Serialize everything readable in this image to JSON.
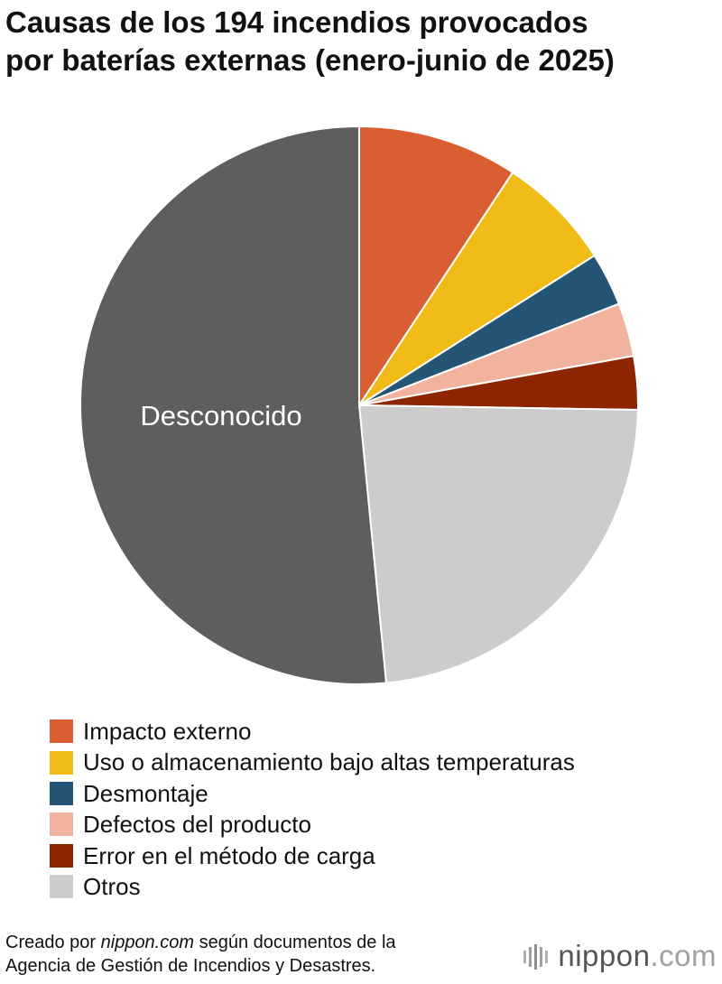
{
  "title": {
    "line1": "Causas de los 194 incendios provocados",
    "line2": "por baterías externas (enero-junio de 2025)"
  },
  "chart_data": {
    "type": "pie",
    "title": "Causas de los 194 incendios provocados por baterías externas (enero-junio de 2025)",
    "total": 194,
    "slices": [
      {
        "label": "Impacto externo",
        "value": 18,
        "color": "#d95f32"
      },
      {
        "label": "Uso o almacenamiento bajo altas temperaturas",
        "value": 13,
        "color": "#f0bb17"
      },
      {
        "label": "Desmontaje",
        "value": 6,
        "color": "#245575"
      },
      {
        "label": "Defectos del producto",
        "value": 6,
        "color": "#f2b39e"
      },
      {
        "label": "Error en el método de carga",
        "value": 6,
        "color": "#8c2500"
      },
      {
        "label": "Otros",
        "value": 45,
        "color": "#cccccc"
      },
      {
        "label": "Desconocido",
        "value": 100,
        "color": "#5e5e5e"
      }
    ],
    "inner_label": "Desconocido",
    "legend_position": "bottom-left"
  },
  "legend": [
    {
      "label": "Impacto externo",
      "color": "#d95f32"
    },
    {
      "label": "Uso o almacenamiento bajo altas temperaturas",
      "color": "#f0bb17"
    },
    {
      "label": "Desmontaje",
      "color": "#245575"
    },
    {
      "label": "Defectos del producto",
      "color": "#f2b39e"
    },
    {
      "label": "Error en el método de carga",
      "color": "#8c2500"
    },
    {
      "label": "Otros",
      "color": "#cccccc"
    }
  ],
  "footer": {
    "prefix": "Creado por ",
    "site": "nippon.com",
    "suffix": " según documentos de la",
    "line2": "Agencia de Gestión de Incendios y Desastres."
  },
  "logo": {
    "name": "nippon",
    "dot": ".",
    "tld": "com"
  }
}
